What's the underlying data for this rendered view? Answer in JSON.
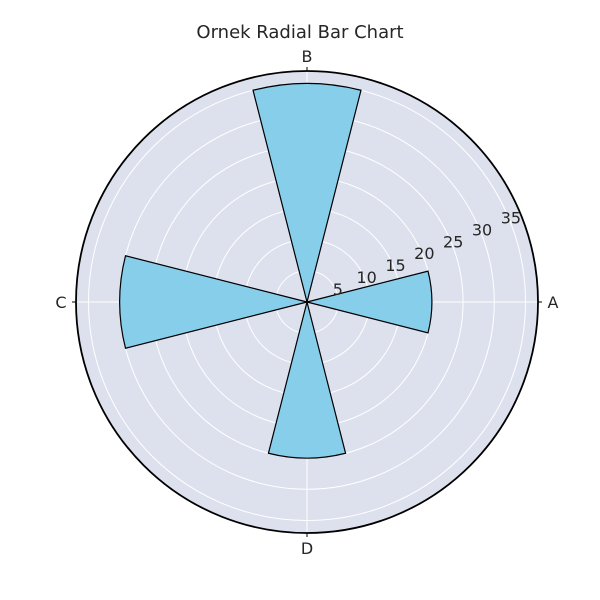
{
  "chart_data": {
    "type": "bar",
    "projection": "polar",
    "title": "Ornek Radial Bar Chart",
    "categories": [
      "A",
      "B",
      "C",
      "D"
    ],
    "values": [
      20,
      35,
      30,
      25
    ],
    "r_ticks": [
      5,
      10,
      15,
      20,
      25,
      30,
      35
    ],
    "rlim": [
      0,
      37
    ],
    "grid": true,
    "colors": {
      "bar": "#87CEEB",
      "bar_edge": "#000000",
      "background": "#DDE1EE",
      "grid": "#ffffff"
    }
  }
}
